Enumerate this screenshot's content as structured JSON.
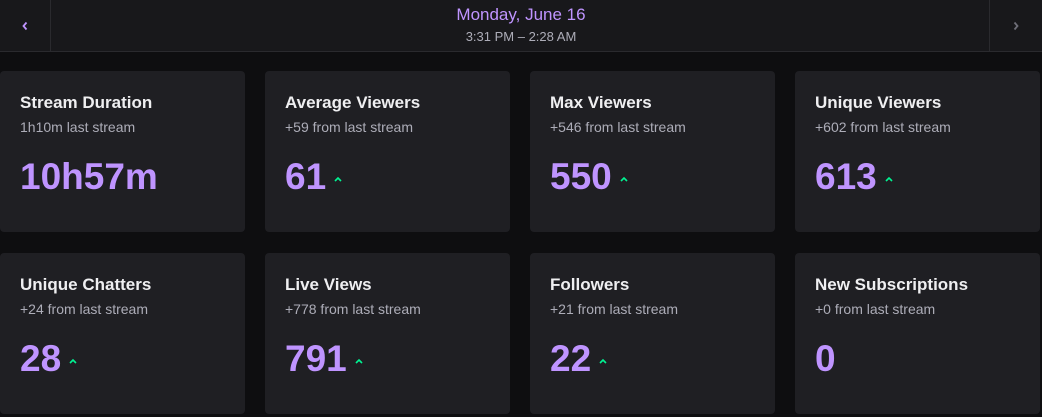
{
  "header": {
    "date": "Monday, June 16",
    "time_range": "3:31 PM – 2:28 AM"
  },
  "cards": [
    {
      "title": "Stream Duration",
      "subtitle": "1h10m last stream",
      "value": "10h57m"
    },
    {
      "title": "Average Viewers",
      "subtitle": "+59 from last stream",
      "value": "61"
    },
    {
      "title": "Max Viewers",
      "subtitle": "+546 from last stream",
      "value": "550"
    },
    {
      "title": "Unique Viewers",
      "subtitle": "+602 from last stream",
      "value": "613"
    },
    {
      "title": "Unique Chatters",
      "subtitle": "+24 from last stream",
      "value": "28"
    },
    {
      "title": "Live Views",
      "subtitle": "+778 from last stream",
      "value": "791"
    },
    {
      "title": "Followers",
      "subtitle": "+21 from last stream",
      "value": "22"
    },
    {
      "title": "New Subscriptions",
      "subtitle": "+0 from last stream",
      "value": "0"
    }
  ]
}
